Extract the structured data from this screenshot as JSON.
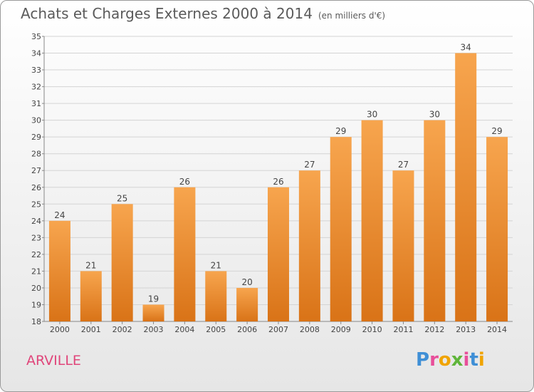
{
  "header": {
    "title": "Achats et Charges Externes 2000 à 2014",
    "unit_note": "(en milliers d'€)"
  },
  "footer": {
    "commune": "ARVILLE",
    "logo_text": "Proxiti"
  },
  "colors": {
    "bar_top": "#f7a54e",
    "bar_bottom": "#d97317",
    "commune_text": "#e0457a",
    "logo_letters": [
      "#3f8fd6",
      "#e84f9a",
      "#f0a400",
      "#5fb53a",
      "#e84f9a",
      "#3f8fd6",
      "#f0a400"
    ]
  },
  "chart_data": {
    "type": "bar",
    "title": "Achats et Charges Externes 2000 à 2014",
    "subtitle": "(en milliers d'€)",
    "xlabel": "",
    "ylabel": "",
    "categories": [
      "2000",
      "2001",
      "2002",
      "2003",
      "2004",
      "2005",
      "2006",
      "2007",
      "2008",
      "2009",
      "2010",
      "2011",
      "2012",
      "2013",
      "2014"
    ],
    "values": [
      24,
      21,
      25,
      19,
      26,
      21,
      20,
      26,
      27,
      29,
      30,
      27,
      30,
      34,
      29
    ],
    "ylim": [
      18,
      35
    ],
    "yticks": [
      18,
      19,
      20,
      21,
      22,
      23,
      24,
      25,
      26,
      27,
      28,
      29,
      30,
      31,
      32,
      33,
      34,
      35
    ],
    "grid": true,
    "legend": "none"
  }
}
